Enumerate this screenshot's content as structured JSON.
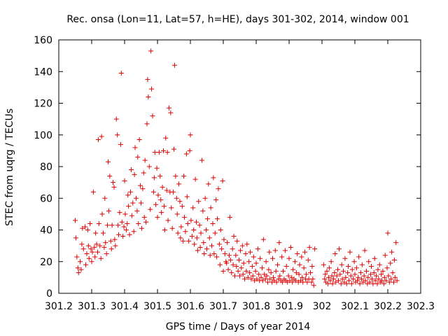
{
  "chart_data": {
    "type": "scatter",
    "title": "Rec. onsa (Lon=11, Lat=57, h=HE), days 301-302, 2014, window 001",
    "xlabel": "GPS time / Days of year 2014",
    "ylabel": "STEC from uqrg / TECUs",
    "xlim": [
      301.2,
      302.3
    ],
    "ylim": [
      0,
      160
    ],
    "x_ticks": [
      "301.2",
      "301.3",
      "301.4",
      "301.5",
      "301.6",
      "301.7",
      "301.8",
      "301.9",
      "302",
      "302.1",
      "302.2",
      "302.3"
    ],
    "y_ticks": [
      "0",
      "20",
      "40",
      "60",
      "80",
      "100",
      "120",
      "140",
      "160"
    ],
    "grid": false,
    "marker": "plus",
    "color": "#dd0000",
    "points": [
      [
        301.25,
        46
      ],
      [
        301.252,
        35
      ],
      [
        301.255,
        23
      ],
      [
        301.258,
        16
      ],
      [
        301.26,
        13
      ],
      [
        301.265,
        20
      ],
      [
        301.268,
        15
      ],
      [
        301.27,
        31
      ],
      [
        301.272,
        41
      ],
      [
        301.275,
        28
      ],
      [
        301.28,
        42
      ],
      [
        301.282,
        18
      ],
      [
        301.285,
        25
      ],
      [
        301.288,
        40
      ],
      [
        301.29,
        30
      ],
      [
        301.292,
        22
      ],
      [
        301.295,
        44
      ],
      [
        301.298,
        28
      ],
      [
        301.3,
        20
      ],
      [
        301.302,
        26
      ],
      [
        301.305,
        64
      ],
      [
        301.308,
        29
      ],
      [
        301.31,
        23
      ],
      [
        301.312,
        38
      ],
      [
        301.315,
        31
      ],
      [
        301.318,
        26
      ],
      [
        301.32,
        97
      ],
      [
        301.322,
        44
      ],
      [
        301.325,
        30
      ],
      [
        301.328,
        22
      ],
      [
        301.33,
        99
      ],
      [
        301.332,
        50
      ],
      [
        301.335,
        38
      ],
      [
        301.338,
        29
      ],
      [
        301.34,
        60
      ],
      [
        301.342,
        32
      ],
      [
        301.345,
        25
      ],
      [
        301.348,
        43
      ],
      [
        301.35,
        83
      ],
      [
        301.352,
        52
      ],
      [
        301.355,
        74
      ],
      [
        301.358,
        33
      ],
      [
        301.36,
        28
      ],
      [
        301.362,
        43
      ],
      [
        301.365,
        70
      ],
      [
        301.368,
        67
      ],
      [
        301.37,
        34
      ],
      [
        301.372,
        30
      ],
      [
        301.375,
        110
      ],
      [
        301.378,
        100
      ],
      [
        301.38,
        43
      ],
      [
        301.382,
        37
      ],
      [
        301.385,
        51
      ],
      [
        301.388,
        94
      ],
      [
        301.39,
        139
      ],
      [
        301.392,
        45
      ],
      [
        301.395,
        36
      ],
      [
        301.398,
        42
      ],
      [
        301.4,
        71
      ],
      [
        301.402,
        50
      ],
      [
        301.405,
        40
      ],
      [
        301.408,
        44
      ],
      [
        301.41,
        62
      ],
      [
        301.412,
        55
      ],
      [
        301.415,
        37
      ],
      [
        301.418,
        64
      ],
      [
        301.42,
        78
      ],
      [
        301.422,
        49
      ],
      [
        301.425,
        57
      ],
      [
        301.428,
        39
      ],
      [
        301.43,
        75
      ],
      [
        301.432,
        92
      ],
      [
        301.435,
        60
      ],
      [
        301.438,
        52
      ],
      [
        301.44,
        86
      ],
      [
        301.442,
        44
      ],
      [
        301.445,
        97
      ],
      [
        301.448,
        68
      ],
      [
        301.45,
        57
      ],
      [
        301.452,
        41
      ],
      [
        301.455,
        66
      ],
      [
        301.458,
        76
      ],
      [
        301.46,
        48
      ],
      [
        301.462,
        84
      ],
      [
        301.465,
        45
      ],
      [
        301.468,
        107
      ],
      [
        301.47,
        135
      ],
      [
        301.472,
        124
      ],
      [
        301.475,
        80
      ],
      [
        301.478,
        53
      ],
      [
        301.48,
        153
      ],
      [
        301.482,
        129
      ],
      [
        301.485,
        112
      ],
      [
        301.488,
        64
      ],
      [
        301.49,
        73
      ],
      [
        301.492,
        89
      ],
      [
        301.495,
        56
      ],
      [
        301.498,
        79
      ],
      [
        301.5,
        48
      ],
      [
        301.502,
        62
      ],
      [
        301.505,
        89
      ],
      [
        301.508,
        74
      ],
      [
        301.51,
        59
      ],
      [
        301.512,
        51
      ],
      [
        301.515,
        67
      ],
      [
        301.518,
        90
      ],
      [
        301.52,
        55
      ],
      [
        301.522,
        40
      ],
      [
        301.525,
        98
      ],
      [
        301.528,
        65
      ],
      [
        301.53,
        89
      ],
      [
        301.532,
        46
      ],
      [
        301.535,
        117
      ],
      [
        301.538,
        64
      ],
      [
        301.54,
        114
      ],
      [
        301.542,
        54
      ],
      [
        301.545,
        41
      ],
      [
        301.548,
        64
      ],
      [
        301.55,
        91
      ],
      [
        301.552,
        144
      ],
      [
        301.555,
        74
      ],
      [
        301.558,
        60
      ],
      [
        301.56,
        50
      ],
      [
        301.562,
        38
      ],
      [
        301.565,
        69
      ],
      [
        301.568,
        58
      ],
      [
        301.57,
        35
      ],
      [
        301.572,
        42
      ],
      [
        301.575,
        55
      ],
      [
        301.578,
        33
      ],
      [
        301.58,
        74
      ],
      [
        301.582,
        48
      ],
      [
        301.585,
        39
      ],
      [
        301.588,
        88
      ],
      [
        301.59,
        61
      ],
      [
        301.592,
        44
      ],
      [
        301.595,
        33
      ],
      [
        301.598,
        90
      ],
      [
        301.6,
        100
      ],
      [
        301.602,
        46
      ],
      [
        301.605,
        36
      ],
      [
        301.608,
        54
      ],
      [
        301.61,
        40
      ],
      [
        301.612,
        31
      ],
      [
        301.615,
        72
      ],
      [
        301.618,
        45
      ],
      [
        301.62,
        35
      ],
      [
        301.622,
        27
      ],
      [
        301.625,
        58
      ],
      [
        301.628,
        43
      ],
      [
        301.63,
        29
      ],
      [
        301.632,
        38
      ],
      [
        301.635,
        84
      ],
      [
        301.638,
        52
      ],
      [
        301.64,
        32
      ],
      [
        301.642,
        25
      ],
      [
        301.645,
        60
      ],
      [
        301.648,
        40
      ],
      [
        301.65,
        28
      ],
      [
        301.652,
        47
      ],
      [
        301.655,
        69
      ],
      [
        301.658,
        35
      ],
      [
        301.66,
        24
      ],
      [
        301.662,
        54
      ],
      [
        301.665,
        30
      ],
      [
        301.668,
        44
      ],
      [
        301.67,
        73
      ],
      [
        301.672,
        25
      ],
      [
        301.675,
        38
      ],
      [
        301.678,
        59
      ],
      [
        301.68,
        23
      ],
      [
        301.682,
        47
      ],
      [
        301.685,
        66
      ],
      [
        301.688,
        31
      ],
      [
        301.69,
        18
      ],
      [
        301.692,
        40
      ],
      [
        301.695,
        28
      ],
      [
        301.698,
        71
      ],
      [
        301.7,
        14
      ],
      [
        301.702,
        34
      ],
      [
        301.705,
        25
      ],
      [
        301.708,
        20
      ],
      [
        301.71,
        19
      ],
      [
        301.712,
        32
      ],
      [
        301.715,
        15
      ],
      [
        301.718,
        24
      ],
      [
        301.72,
        48
      ],
      [
        301.722,
        21
      ],
      [
        301.725,
        13
      ],
      [
        301.728,
        28
      ],
      [
        301.73,
        18
      ],
      [
        301.732,
        36
      ],
      [
        301.735,
        11
      ],
      [
        301.738,
        24
      ],
      [
        301.74,
        17
      ],
      [
        301.742,
        33
      ],
      [
        301.745,
        14
      ],
      [
        301.748,
        21
      ],
      [
        301.75,
        11
      ],
      [
        301.752,
        27
      ],
      [
        301.755,
        16
      ],
      [
        301.758,
        30
      ],
      [
        301.76,
        12
      ],
      [
        301.762,
        19
      ],
      [
        301.765,
        9
      ],
      [
        301.768,
        25
      ],
      [
        301.77,
        14
      ],
      [
        301.772,
        31
      ],
      [
        301.775,
        10
      ],
      [
        301.778,
        20
      ],
      [
        301.78,
        13
      ],
      [
        301.782,
        26
      ],
      [
        301.785,
        9
      ],
      [
        301.788,
        17
      ],
      [
        301.79,
        11
      ],
      [
        301.792,
        23
      ],
      [
        301.795,
        8
      ],
      [
        301.798,
        14
      ],
      [
        301.8,
        19
      ],
      [
        301.802,
        9
      ],
      [
        301.805,
        28
      ],
      [
        301.808,
        12
      ],
      [
        301.81,
        8
      ],
      [
        301.812,
        22
      ],
      [
        301.815,
        10
      ],
      [
        301.818,
        16
      ],
      [
        301.82,
        8
      ],
      [
        301.822,
        34
      ],
      [
        301.825,
        12
      ],
      [
        301.828,
        9
      ],
      [
        301.83,
        20
      ],
      [
        301.832,
        11
      ],
      [
        301.835,
        7
      ],
      [
        301.838,
        15
      ],
      [
        301.84,
        26
      ],
      [
        301.842,
        9
      ],
      [
        301.845,
        13
      ],
      [
        301.848,
        7
      ],
      [
        301.85,
        22
      ],
      [
        301.852,
        10
      ],
      [
        301.855,
        8
      ],
      [
        301.858,
        27
      ],
      [
        301.86,
        14
      ],
      [
        301.862,
        7
      ],
      [
        301.865,
        18
      ],
      [
        301.868,
        9
      ],
      [
        301.87,
        32
      ],
      [
        301.872,
        11
      ],
      [
        301.875,
        8
      ],
      [
        301.878,
        23
      ],
      [
        301.88,
        7
      ],
      [
        301.882,
        14
      ],
      [
        301.885,
        9
      ],
      [
        301.888,
        27
      ],
      [
        301.89,
        8
      ],
      [
        301.892,
        17
      ],
      [
        301.895,
        7
      ],
      [
        301.898,
        11
      ],
      [
        301.9,
        22
      ],
      [
        301.902,
        8
      ],
      [
        301.905,
        29
      ],
      [
        301.908,
        10
      ],
      [
        301.91,
        7
      ],
      [
        301.912,
        15
      ],
      [
        301.915,
        9
      ],
      [
        301.918,
        20
      ],
      [
        301.92,
        8
      ],
      [
        301.922,
        13
      ],
      [
        301.925,
        25
      ],
      [
        301.928,
        7
      ],
      [
        301.93,
        12
      ],
      [
        301.932,
        18
      ],
      [
        301.935,
        8
      ],
      [
        301.938,
        23
      ],
      [
        301.94,
        10
      ],
      [
        301.942,
        7
      ],
      [
        301.945,
        16
      ],
      [
        301.948,
        26
      ],
      [
        301.95,
        9
      ],
      [
        301.952,
        12
      ],
      [
        301.955,
        7
      ],
      [
        301.958,
        21
      ],
      [
        301.96,
        9
      ],
      [
        301.962,
        29
      ],
      [
        301.965,
        13
      ],
      [
        301.968,
        7
      ],
      [
        301.97,
        17
      ],
      [
        301.972,
        9
      ],
      [
        301.975,
        5
      ],
      [
        301.978,
        28
      ],
      [
        302.005,
        18
      ],
      [
        302.008,
        9
      ],
      [
        302.01,
        12
      ],
      [
        302.012,
        7
      ],
      [
        302.015,
        14
      ],
      [
        302.018,
        6
      ],
      [
        302.02,
        10
      ],
      [
        302.022,
        16
      ],
      [
        302.025,
        8
      ],
      [
        302.028,
        20
      ],
      [
        302.03,
        11
      ],
      [
        302.032,
        6
      ],
      [
        302.035,
        9
      ],
      [
        302.038,
        13
      ],
      [
        302.04,
        25
      ],
      [
        302.042,
        7
      ],
      [
        302.045,
        11
      ],
      [
        302.048,
        15
      ],
      [
        302.05,
        8
      ],
      [
        302.052,
        28
      ],
      [
        302.055,
        12
      ],
      [
        302.058,
        6
      ],
      [
        302.06,
        18
      ],
      [
        302.062,
        9
      ],
      [
        302.065,
        14
      ],
      [
        302.068,
        7
      ],
      [
        302.07,
        22
      ],
      [
        302.072,
        10
      ],
      [
        302.075,
        6
      ],
      [
        302.078,
        13
      ],
      [
        302.08,
        17
      ],
      [
        302.082,
        8
      ],
      [
        302.085,
        26
      ],
      [
        302.088,
        11
      ],
      [
        302.09,
        6
      ],
      [
        302.092,
        15
      ],
      [
        302.095,
        9
      ],
      [
        302.098,
        20
      ],
      [
        302.1,
        12
      ],
      [
        302.102,
        7
      ],
      [
        302.105,
        16
      ],
      [
        302.108,
        8
      ],
      [
        302.11,
        10
      ],
      [
        302.112,
        23
      ],
      [
        302.115,
        6
      ],
      [
        302.118,
        13
      ],
      [
        302.12,
        9
      ],
      [
        302.122,
        18
      ],
      [
        302.125,
        7
      ],
      [
        302.128,
        11
      ],
      [
        302.13,
        27
      ],
      [
        302.132,
        8
      ],
      [
        302.135,
        14
      ],
      [
        302.138,
        6
      ],
      [
        302.14,
        10
      ],
      [
        302.142,
        20
      ],
      [
        302.145,
        7
      ],
      [
        302.148,
        12
      ],
      [
        302.15,
        17
      ],
      [
        302.152,
        9
      ],
      [
        302.155,
        6
      ],
      [
        302.158,
        13
      ],
      [
        302.16,
        22
      ],
      [
        302.162,
        8
      ],
      [
        302.165,
        11
      ],
      [
        302.168,
        6
      ],
      [
        302.17,
        15
      ],
      [
        302.172,
        9
      ],
      [
        302.175,
        18
      ],
      [
        302.178,
        7
      ],
      [
        302.18,
        12
      ],
      [
        302.182,
        8
      ],
      [
        302.185,
        14
      ],
      [
        302.188,
        6
      ],
      [
        302.19,
        10
      ],
      [
        302.192,
        24
      ],
      [
        302.195,
        8
      ],
      [
        302.198,
        16
      ],
      [
        302.2,
        38
      ],
      [
        302.202,
        11
      ],
      [
        302.205,
        7
      ],
      [
        302.208,
        19
      ],
      [
        302.21,
        9
      ],
      [
        302.212,
        26
      ],
      [
        302.215,
        13
      ],
      [
        302.218,
        7
      ],
      [
        302.22,
        21
      ],
      [
        302.222,
        10
      ],
      [
        302.225,
        32
      ],
      [
        302.228,
        8
      ]
    ]
  }
}
